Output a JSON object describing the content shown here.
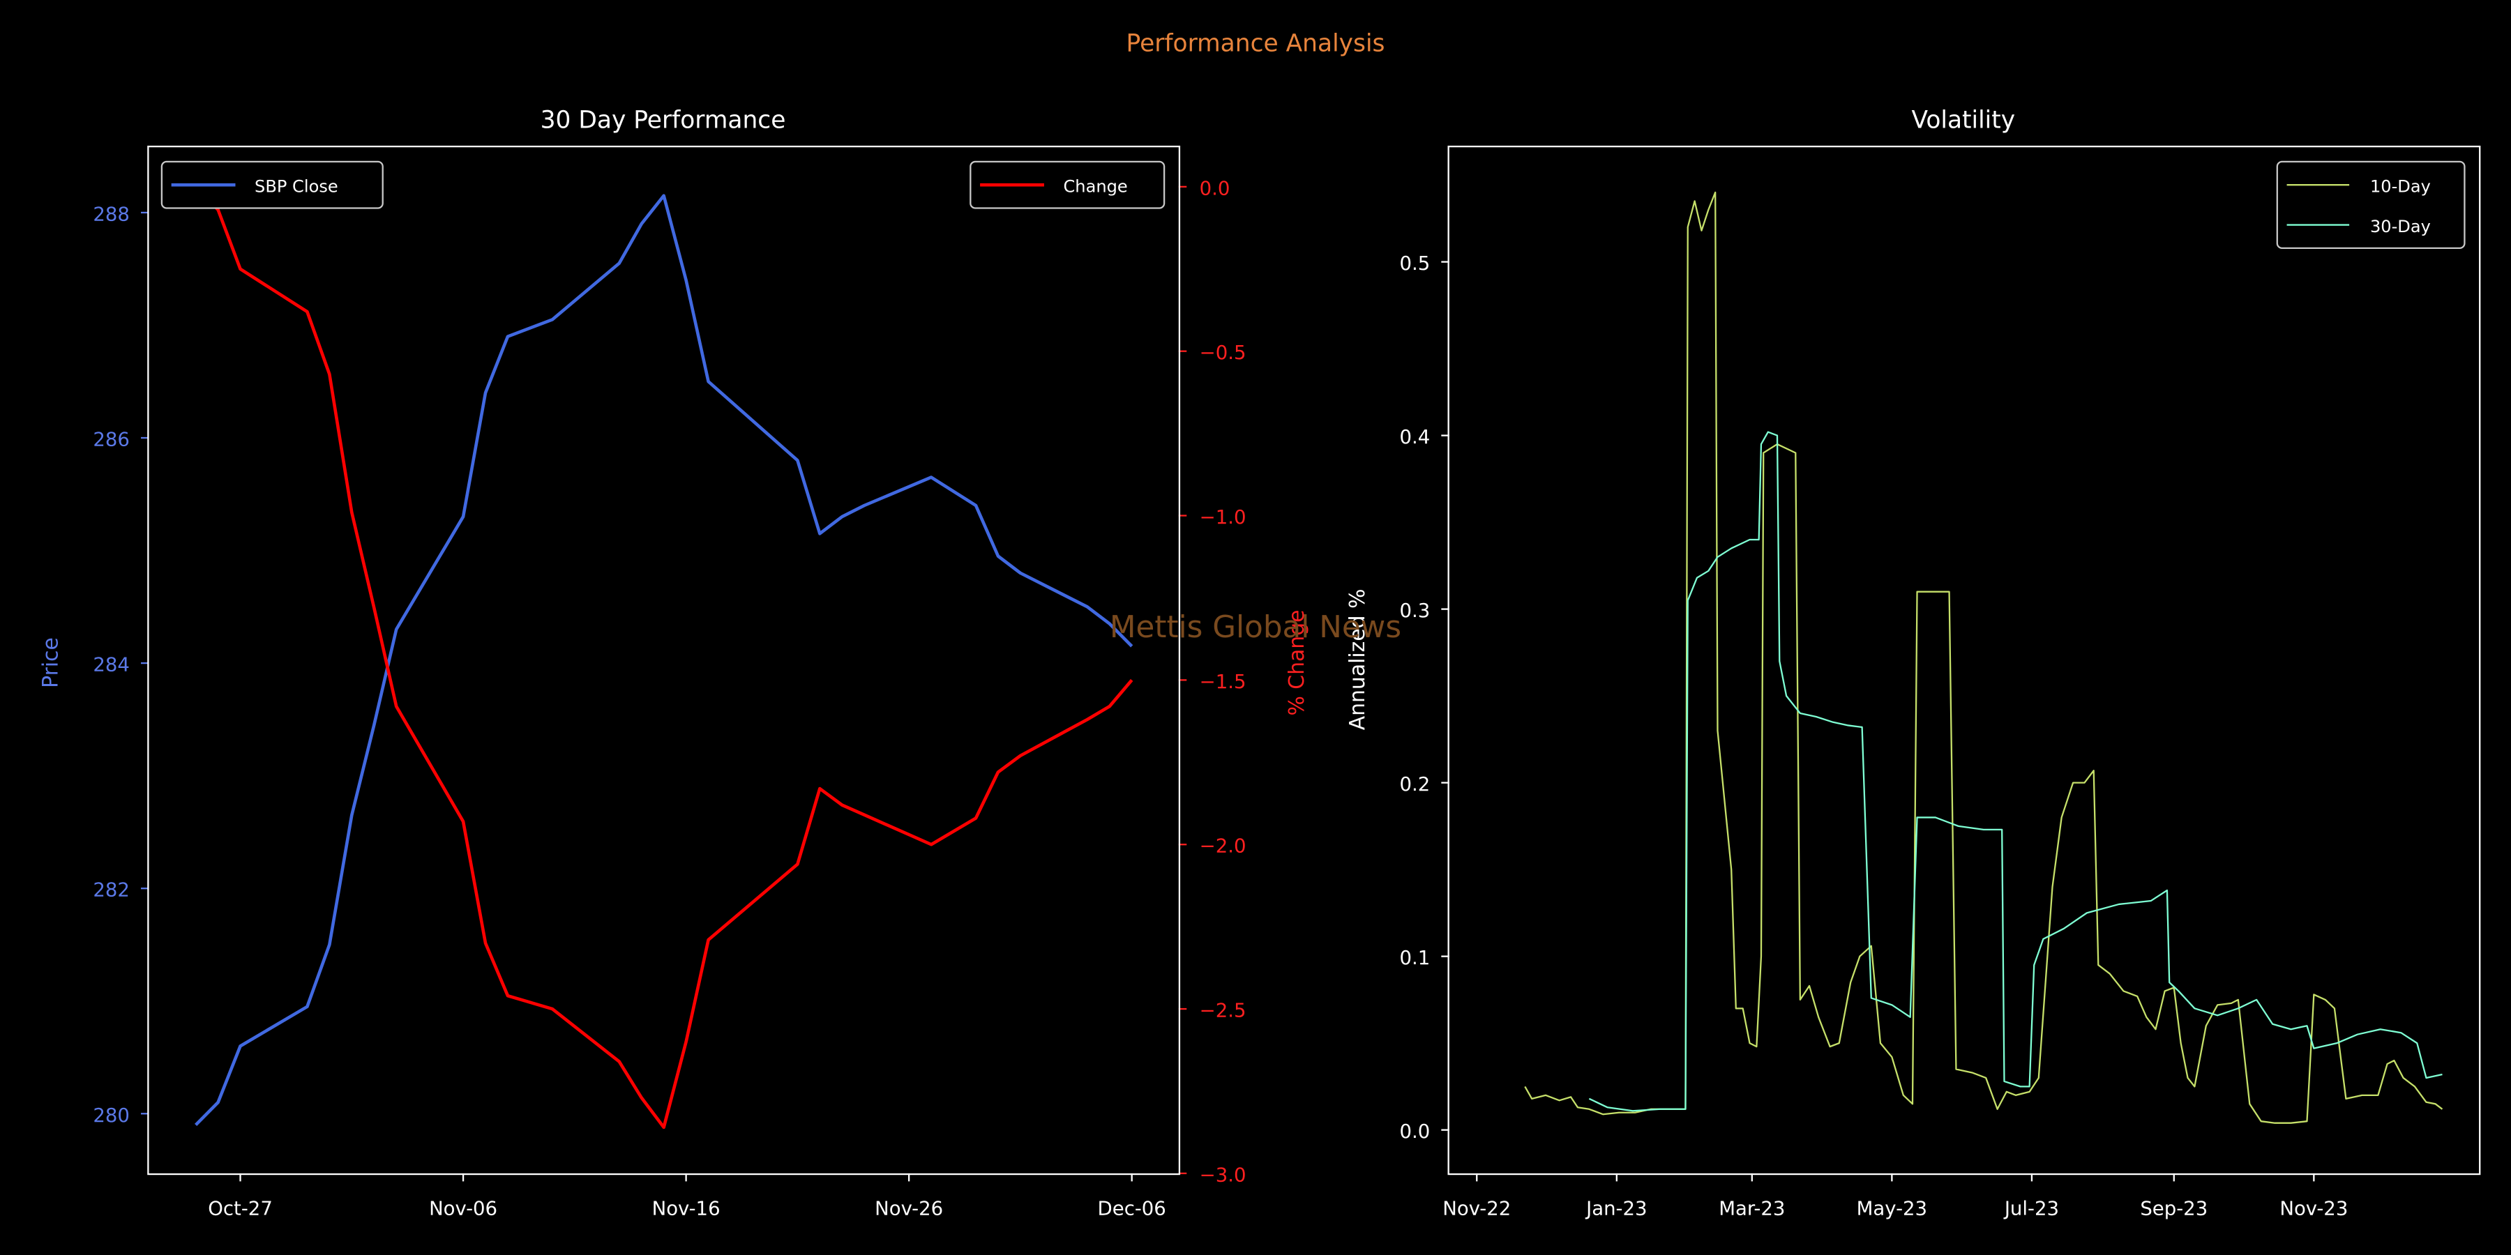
{
  "figure": {
    "suptitle": "Performance Analysis",
    "watermark": "Mettis Global News",
    "colors": {
      "background": "#000000",
      "suptitle": "#e8843c",
      "watermark": "#7a4a1e",
      "price": "#4169e1",
      "change": "#ff0000",
      "vol10": "#c6e06a",
      "vol30": "#7fffd4",
      "axes": "#ffffff"
    }
  },
  "chart_data": [
    {
      "type": "line",
      "title": "30 Day Performance",
      "xlabel": "",
      "ylabel": "Price",
      "ylabel_right": "% Change",
      "x_ticks": [
        "Oct-27",
        "Nov-06",
        "Nov-16",
        "Nov-26",
        "Dec-06"
      ],
      "x_tick_dates": [
        "2023-10-27",
        "2023-11-06",
        "2023-11-16",
        "2023-11-26",
        "2023-12-06"
      ],
      "ylim": [
        279.47,
        288.58
      ],
      "y_ticks": [
        280,
        282,
        284,
        286,
        288
      ],
      "ylim_right": [
        -3.0,
        0.12
      ],
      "y_ticks_right": [
        0.0,
        -0.5,
        -1.0,
        -1.5,
        -2.0,
        -2.5,
        -3.0
      ],
      "y_tick_labels_right": [
        "0.0",
        "−0.5",
        "−1.0",
        "−1.5",
        "−2.0",
        "−2.5",
        "−3.0"
      ],
      "grid": false,
      "legend_left": "top-left",
      "legend_right": "top-right",
      "series": [
        {
          "name": "SBP Close",
          "axis": "left",
          "x": [
            "2023-10-25",
            "2023-10-26",
            "2023-10-27",
            "2023-10-30",
            "2023-10-31",
            "2023-11-01",
            "2023-11-02",
            "2023-11-03",
            "2023-11-06",
            "2023-11-07",
            "2023-11-08",
            "2023-11-10",
            "2023-11-13",
            "2023-11-14",
            "2023-11-15",
            "2023-11-16",
            "2023-11-17",
            "2023-11-21",
            "2023-11-22",
            "2023-11-23",
            "2023-11-24",
            "2023-11-27",
            "2023-11-29",
            "2023-11-30",
            "2023-12-01",
            "2023-12-04",
            "2023-12-05",
            "2023-12-06"
          ],
          "values": [
            279.9,
            280.1,
            280.6,
            280.95,
            281.5,
            282.65,
            283.45,
            284.3,
            285.3,
            286.4,
            286.9,
            287.05,
            287.55,
            287.9,
            288.15,
            287.4,
            286.5,
            285.8,
            285.15,
            285.3,
            285.4,
            285.65,
            285.4,
            284.95,
            284.8,
            284.5,
            284.35,
            284.15
          ]
        },
        {
          "name": "Change",
          "axis": "right",
          "x": [
            "2023-10-25",
            "2023-10-26",
            "2023-10-27",
            "2023-10-30",
            "2023-10-31",
            "2023-11-01",
            "2023-11-02",
            "2023-11-03",
            "2023-11-06",
            "2023-11-07",
            "2023-11-08",
            "2023-11-10",
            "2023-11-13",
            "2023-11-14",
            "2023-11-15",
            "2023-11-16",
            "2023-11-17",
            "2023-11-21",
            "2023-11-22",
            "2023-11-23",
            "2023-11-24",
            "2023-11-27",
            "2023-11-29",
            "2023-11-30",
            "2023-12-01",
            "2023-12-04",
            "2023-12-05",
            "2023-12-06"
          ],
          "values": [
            0.0,
            -0.07,
            -0.25,
            -0.38,
            -0.57,
            -0.99,
            -1.28,
            -1.58,
            -1.93,
            -2.3,
            -2.46,
            -2.5,
            -2.66,
            -2.77,
            -2.86,
            -2.6,
            -2.29,
            -2.06,
            -1.83,
            -1.88,
            -1.91,
            -2.0,
            -1.92,
            -1.78,
            -1.73,
            -1.62,
            -1.58,
            -1.5
          ]
        }
      ]
    },
    {
      "type": "line",
      "title": "Volatility",
      "xlabel": "",
      "ylabel": "Annualized %",
      "x_ticks": [
        "Nov-22",
        "Jan-23",
        "Mar-23",
        "May-23",
        "Jul-23",
        "Sep-23",
        "Nov-23"
      ],
      "x_tick_dates": [
        "2022-11-01",
        "2023-01-01",
        "2023-03-01",
        "2023-05-01",
        "2023-07-01",
        "2023-09-01",
        "2023-11-01"
      ],
      "xlim": [
        "2022-10-20",
        "2024-01-12"
      ],
      "ylim": [
        -0.025,
        0.566
      ],
      "y_ticks": [
        0.0,
        0.1,
        0.2,
        0.3,
        0.4,
        0.5
      ],
      "grid": false,
      "legend": "top-right",
      "series": [
        {
          "name": "10-Day",
          "points": [
            [
              "2022-11-22",
              0.025
            ],
            [
              "2022-11-25",
              0.018
            ],
            [
              "2022-12-01",
              0.02
            ],
            [
              "2022-12-07",
              0.017
            ],
            [
              "2022-12-12",
              0.019
            ],
            [
              "2022-12-15",
              0.013
            ],
            [
              "2022-12-20",
              0.012
            ],
            [
              "2022-12-26",
              0.009
            ],
            [
              "2023-01-02",
              0.01
            ],
            [
              "2023-01-09",
              0.01
            ],
            [
              "2023-01-16",
              0.012
            ],
            [
              "2023-01-24",
              0.012
            ],
            [
              "2023-01-31",
              0.012
            ],
            [
              "2023-02-01",
              0.52
            ],
            [
              "2023-02-04",
              0.535
            ],
            [
              "2023-02-07",
              0.518
            ],
            [
              "2023-02-10",
              0.53
            ],
            [
              "2023-02-13",
              0.54
            ],
            [
              "2023-02-14",
              0.23
            ],
            [
              "2023-02-17",
              0.19
            ],
            [
              "2023-02-20",
              0.15
            ],
            [
              "2023-02-22",
              0.07
            ],
            [
              "2023-02-25",
              0.07
            ],
            [
              "2023-02-28",
              0.05
            ],
            [
              "2023-03-03",
              0.048
            ],
            [
              "2023-03-05",
              0.1
            ],
            [
              "2023-03-06",
              0.39
            ],
            [
              "2023-03-12",
              0.395
            ],
            [
              "2023-03-20",
              0.39
            ],
            [
              "2023-03-22",
              0.075
            ],
            [
              "2023-03-26",
              0.083
            ],
            [
              "2023-03-30",
              0.065
            ],
            [
              "2023-04-04",
              0.048
            ],
            [
              "2023-04-08",
              0.05
            ],
            [
              "2023-04-13",
              0.085
            ],
            [
              "2023-04-17",
              0.1
            ],
            [
              "2023-04-22",
              0.106
            ],
            [
              "2023-04-26",
              0.05
            ],
            [
              "2023-05-01",
              0.042
            ],
            [
              "2023-05-06",
              0.02
            ],
            [
              "2023-05-10",
              0.015
            ],
            [
              "2023-05-12",
              0.31
            ],
            [
              "2023-05-20",
              0.31
            ],
            [
              "2023-05-26",
              0.31
            ],
            [
              "2023-05-29",
              0.035
            ],
            [
              "2023-06-05",
              0.033
            ],
            [
              "2023-06-11",
              0.03
            ],
            [
              "2023-06-16",
              0.012
            ],
            [
              "2023-06-20",
              0.022
            ],
            [
              "2023-06-24",
              0.02
            ],
            [
              "2023-06-30",
              0.022
            ],
            [
              "2023-07-04",
              0.03
            ],
            [
              "2023-07-10",
              0.14
            ],
            [
              "2023-07-14",
              0.18
            ],
            [
              "2023-07-19",
              0.2
            ],
            [
              "2023-07-24",
              0.2
            ],
            [
              "2023-07-28",
              0.207
            ],
            [
              "2023-07-30",
              0.095
            ],
            [
              "2023-08-04",
              0.09
            ],
            [
              "2023-08-10",
              0.08
            ],
            [
              "2023-08-16",
              0.077
            ],
            [
              "2023-08-20",
              0.065
            ],
            [
              "2023-08-24",
              0.058
            ],
            [
              "2023-08-28",
              0.08
            ],
            [
              "2023-09-01",
              0.082
            ],
            [
              "2023-09-04",
              0.05
            ],
            [
              "2023-09-07",
              0.03
            ],
            [
              "2023-09-10",
              0.025
            ],
            [
              "2023-09-15",
              0.06
            ],
            [
              "2023-09-20",
              0.072
            ],
            [
              "2023-09-26",
              0.073
            ],
            [
              "2023-09-29",
              0.075
            ],
            [
              "2023-10-04",
              0.015
            ],
            [
              "2023-10-09",
              0.005
            ],
            [
              "2023-10-15",
              0.004
            ],
            [
              "2023-10-22",
              0.004
            ],
            [
              "2023-10-29",
              0.005
            ],
            [
              "2023-11-01",
              0.078
            ],
            [
              "2023-11-06",
              0.075
            ],
            [
              "2023-11-10",
              0.07
            ],
            [
              "2023-11-15",
              0.018
            ],
            [
              "2023-11-22",
              0.02
            ],
            [
              "2023-11-29",
              0.02
            ],
            [
              "2023-12-03",
              0.038
            ],
            [
              "2023-12-06",
              0.04
            ],
            [
              "2023-12-10",
              0.03
            ],
            [
              "2023-12-15",
              0.025
            ],
            [
              "2023-12-20",
              0.016
            ],
            [
              "2023-12-24",
              0.015
            ],
            [
              "2023-12-27",
              0.012
            ]
          ]
        },
        {
          "name": "30-Day",
          "points": [
            [
              "2022-12-20",
              0.018
            ],
            [
              "2022-12-28",
              0.013
            ],
            [
              "2023-01-08",
              0.011
            ],
            [
              "2023-01-20",
              0.012
            ],
            [
              "2023-01-31",
              0.012
            ],
            [
              "2023-02-01",
              0.305
            ],
            [
              "2023-02-05",
              0.318
            ],
            [
              "2023-02-10",
              0.322
            ],
            [
              "2023-02-14",
              0.33
            ],
            [
              "2023-02-20",
              0.335
            ],
            [
              "2023-02-28",
              0.34
            ],
            [
              "2023-03-04",
              0.34
            ],
            [
              "2023-03-05",
              0.395
            ],
            [
              "2023-03-08",
              0.402
            ],
            [
              "2023-03-12",
              0.4
            ],
            [
              "2023-03-13",
              0.27
            ],
            [
              "2023-03-16",
              0.25
            ],
            [
              "2023-03-22",
              0.24
            ],
            [
              "2023-03-29",
              0.238
            ],
            [
              "2023-04-05",
              0.235
            ],
            [
              "2023-04-12",
              0.233
            ],
            [
              "2023-04-18",
              0.232
            ],
            [
              "2023-04-22",
              0.076
            ],
            [
              "2023-05-01",
              0.072
            ],
            [
              "2023-05-09",
              0.065
            ],
            [
              "2023-05-12",
              0.18
            ],
            [
              "2023-05-20",
              0.18
            ],
            [
              "2023-05-30",
              0.175
            ],
            [
              "2023-06-10",
              0.173
            ],
            [
              "2023-06-18",
              0.173
            ],
            [
              "2023-06-19",
              0.028
            ],
            [
              "2023-06-26",
              0.025
            ],
            [
              "2023-06-30",
              0.025
            ],
            [
              "2023-07-02",
              0.095
            ],
            [
              "2023-07-06",
              0.11
            ],
            [
              "2023-07-15",
              0.116
            ],
            [
              "2023-07-25",
              0.125
            ],
            [
              "2023-08-08",
              0.13
            ],
            [
              "2023-08-22",
              0.132
            ],
            [
              "2023-08-29",
              0.138
            ],
            [
              "2023-08-30",
              0.085
            ],
            [
              "2023-09-03",
              0.08
            ],
            [
              "2023-09-10",
              0.07
            ],
            [
              "2023-09-20",
              0.066
            ],
            [
              "2023-09-29",
              0.07
            ],
            [
              "2023-10-07",
              0.075
            ],
            [
              "2023-10-14",
              0.061
            ],
            [
              "2023-10-22",
              0.058
            ],
            [
              "2023-10-29",
              0.06
            ],
            [
              "2023-11-01",
              0.047
            ],
            [
              "2023-11-11",
              0.05
            ],
            [
              "2023-11-20",
              0.055
            ],
            [
              "2023-11-30",
              0.058
            ],
            [
              "2023-12-09",
              0.056
            ],
            [
              "2023-12-16",
              0.05
            ],
            [
              "2023-12-20",
              0.03
            ],
            [
              "2023-12-27",
              0.032
            ]
          ]
        }
      ]
    }
  ]
}
